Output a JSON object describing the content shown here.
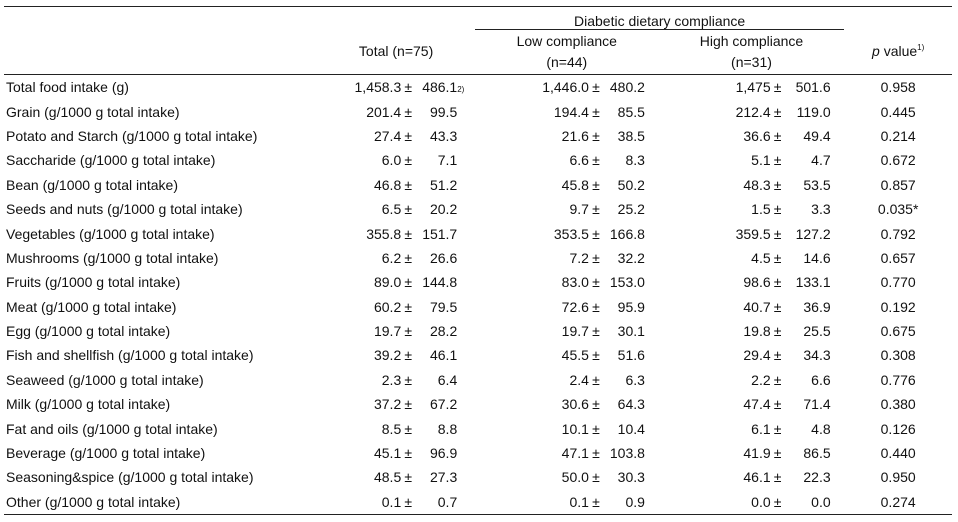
{
  "header": {
    "group_title": "Diabetic dietary compliance",
    "total": "Total (n=75)",
    "low_line1": "Low compliance",
    "low_line2": "(n=44)",
    "high_line1": "High compliance",
    "high_line2": "(n=31)",
    "p_italic": "p",
    "p_rest": " value",
    "p_sup": "1)"
  },
  "rows": [
    {
      "label": "Total food intake (g)",
      "total": {
        "mean": "1,458.3",
        "sd": "486.1",
        "sup": "2)"
      },
      "low": {
        "mean": "1,446.0",
        "sd": "480.2"
      },
      "high": {
        "mean": "1,475",
        "sd": "501.6"
      },
      "p": "0.958"
    },
    {
      "label": "Grain (g/1000 g total intake)",
      "total": {
        "mean": "201.4",
        "sd": "99.5",
        "sup": ""
      },
      "low": {
        "mean": "194.4",
        "sd": "85.5"
      },
      "high": {
        "mean": "212.4",
        "sd": "119.0"
      },
      "p": "0.445"
    },
    {
      "label": "Potato and Starch (g/1000 g total intake)",
      "total": {
        "mean": "27.4",
        "sd": "43.3",
        "sup": ""
      },
      "low": {
        "mean": "21.6",
        "sd": "38.5"
      },
      "high": {
        "mean": "36.6",
        "sd": "49.4"
      },
      "p": "0.214"
    },
    {
      "label": "Saccharide (g/1000 g total intake)",
      "total": {
        "mean": "6.0",
        "sd": "7.1",
        "sup": ""
      },
      "low": {
        "mean": "6.6",
        "sd": "8.3"
      },
      "high": {
        "mean": "5.1",
        "sd": "4.7"
      },
      "p": "0.672"
    },
    {
      "label": "Bean (g/1000 g total intake)",
      "total": {
        "mean": "46.8",
        "sd": "51.2",
        "sup": ""
      },
      "low": {
        "mean": "45.8",
        "sd": "50.2"
      },
      "high": {
        "mean": "48.3",
        "sd": "53.5"
      },
      "p": "0.857"
    },
    {
      "label": "Seeds and nuts (g/1000 g total intake)",
      "total": {
        "mean": "6.5",
        "sd": "20.2",
        "sup": ""
      },
      "low": {
        "mean": "9.7",
        "sd": "25.2"
      },
      "high": {
        "mean": "1.5",
        "sd": "3.3"
      },
      "p": "0.035*"
    },
    {
      "label": "Vegetables (g/1000 g total intake)",
      "total": {
        "mean": "355.8",
        "sd": "151.7",
        "sup": ""
      },
      "low": {
        "mean": "353.5",
        "sd": "166.8"
      },
      "high": {
        "mean": "359.5",
        "sd": "127.2"
      },
      "p": "0.792"
    },
    {
      "label": "Mushrooms (g/1000 g total intake)",
      "total": {
        "mean": "6.2",
        "sd": "26.6",
        "sup": ""
      },
      "low": {
        "mean": "7.2",
        "sd": "32.2"
      },
      "high": {
        "mean": "4.5",
        "sd": "14.6"
      },
      "p": "0.657"
    },
    {
      "label": "Fruits (g/1000 g total intake)",
      "total": {
        "mean": "89.0",
        "sd": "144.8",
        "sup": ""
      },
      "low": {
        "mean": "83.0",
        "sd": "153.0"
      },
      "high": {
        "mean": "98.6",
        "sd": "133.1"
      },
      "p": "0.770"
    },
    {
      "label": "Meat (g/1000 g total intake)",
      "total": {
        "mean": "60.2",
        "sd": "79.5",
        "sup": ""
      },
      "low": {
        "mean": "72.6",
        "sd": "95.9"
      },
      "high": {
        "mean": "40.7",
        "sd": "36.9"
      },
      "p": "0.192"
    },
    {
      "label": "Egg (g/1000 g total intake)",
      "total": {
        "mean": "19.7",
        "sd": "28.2",
        "sup": ""
      },
      "low": {
        "mean": "19.7",
        "sd": "30.1"
      },
      "high": {
        "mean": "19.8",
        "sd": "25.5"
      },
      "p": "0.675"
    },
    {
      "label": "Fish and shellfish (g/1000 g total intake)",
      "total": {
        "mean": "39.2",
        "sd": "46.1",
        "sup": ""
      },
      "low": {
        "mean": "45.5",
        "sd": "51.6"
      },
      "high": {
        "mean": "29.4",
        "sd": "34.3"
      },
      "p": "0.308"
    },
    {
      "label": "Seaweed (g/1000 g total intake)",
      "total": {
        "mean": "2.3",
        "sd": "6.4",
        "sup": ""
      },
      "low": {
        "mean": "2.4",
        "sd": "6.3"
      },
      "high": {
        "mean": "2.2",
        "sd": "6.6"
      },
      "p": "0.776"
    },
    {
      "label": "Milk (g/1000 g total intake)",
      "total": {
        "mean": "37.2",
        "sd": "67.2",
        "sup": ""
      },
      "low": {
        "mean": "30.6",
        "sd": "64.3"
      },
      "high": {
        "mean": "47.4",
        "sd": "71.4"
      },
      "p": "0.380"
    },
    {
      "label": "Fat and oils (g/1000 g total intake)",
      "total": {
        "mean": "8.5",
        "sd": "8.8",
        "sup": ""
      },
      "low": {
        "mean": "10.1",
        "sd": "10.4"
      },
      "high": {
        "mean": "6.1",
        "sd": "4.8"
      },
      "p": "0.126"
    },
    {
      "label": "Beverage (g/1000 g total intake)",
      "total": {
        "mean": "45.1",
        "sd": "96.9",
        "sup": ""
      },
      "low": {
        "mean": "47.1",
        "sd": "103.8"
      },
      "high": {
        "mean": "41.9",
        "sd": "86.5"
      },
      "p": "0.440"
    },
    {
      "label": "Seasoning&spice (g/1000 g total intake)",
      "total": {
        "mean": "48.5",
        "sd": "27.3",
        "sup": ""
      },
      "low": {
        "mean": "50.0",
        "sd": "30.3"
      },
      "high": {
        "mean": "46.1",
        "sd": "22.3"
      },
      "p": "0.950"
    },
    {
      "label": "Other (g/1000 g total intake)",
      "total": {
        "mean": "0.1",
        "sd": "0.7",
        "sup": ""
      },
      "low": {
        "mean": "0.1",
        "sd": "0.9"
      },
      "high": {
        "mean": "0.0",
        "sd": "0.0"
      },
      "p": "0.274"
    }
  ],
  "pm_symbol": "±"
}
